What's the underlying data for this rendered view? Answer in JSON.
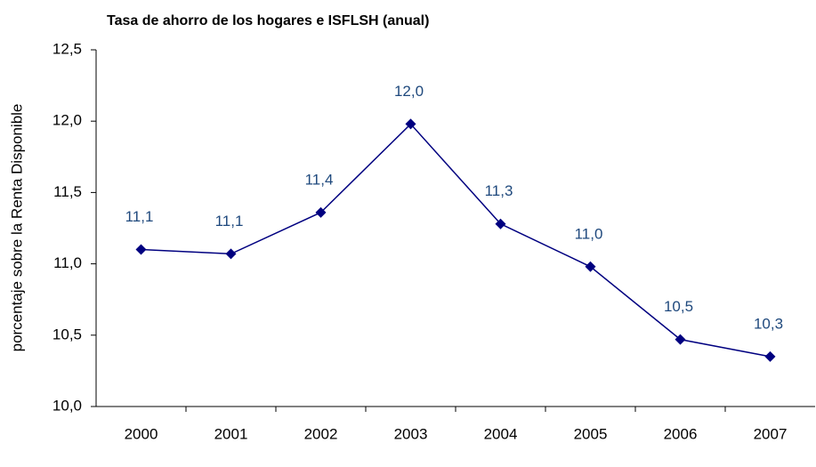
{
  "chart_data": {
    "type": "line",
    "title": "Tasa de ahorro de los hogares e ISFLSH (anual)",
    "y_label": "porcentaje sobre la Renta Disponible",
    "categories": [
      "2000",
      "2001",
      "2002",
      "2003",
      "2004",
      "2005",
      "2006",
      "2007"
    ],
    "series": [
      {
        "color": "#000080",
        "values": [
          11.1,
          11.07,
          11.36,
          11.98,
          11.28,
          10.98,
          10.47,
          10.35
        ],
        "value_labels": [
          "11,1",
          "11,1",
          "11,4",
          "12,0",
          "11,3",
          "11,0",
          "10,5",
          "10,3"
        ]
      }
    ],
    "ylim": [
      10,
      12.5
    ],
    "yticks": [
      {
        "value": 10,
        "label": "10,0"
      },
      {
        "value": 10.5,
        "label": "10,5"
      },
      {
        "value": 11,
        "label": "11,0"
      },
      {
        "value": 11.5,
        "label": "11,5"
      },
      {
        "value": 12,
        "label": "12,0"
      },
      {
        "value": 12.5,
        "label": "12,5"
      }
    ],
    "grid": false
  }
}
